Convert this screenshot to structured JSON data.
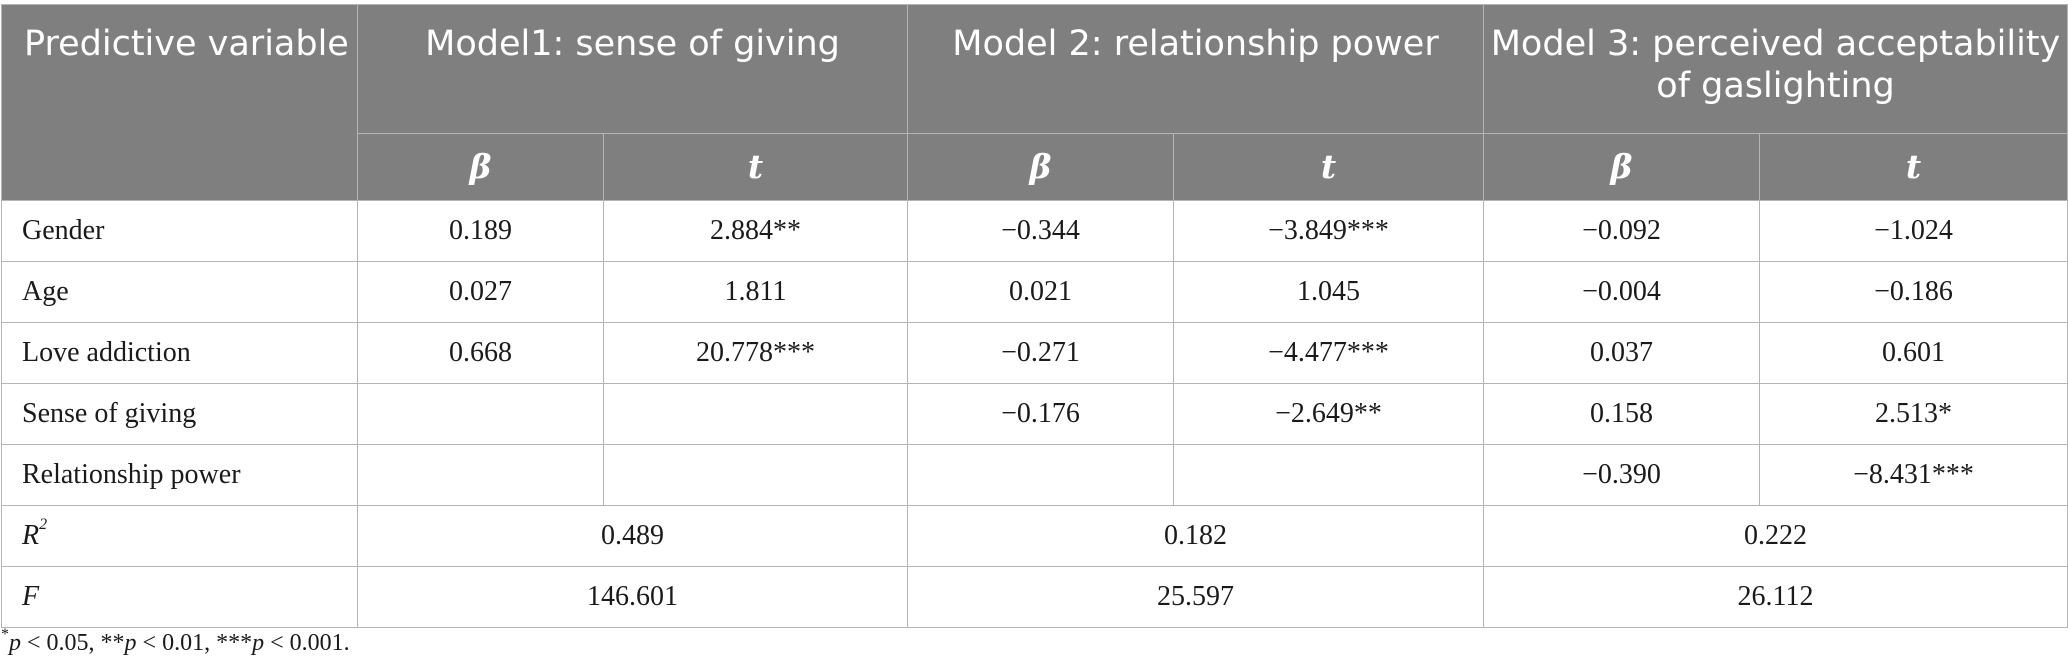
{
  "header": {
    "predictor": "Predictive variable",
    "models": [
      "Model1: sense of giving",
      "Model 2: relationship power",
      "Model 3: perceived acceptability of gaslighting"
    ],
    "beta": "β",
    "t": "t"
  },
  "rows": [
    {
      "label": "Gender",
      "cells": [
        "0.189",
        "2.884**",
        "−0.344",
        "−3.849***",
        "−0.092",
        "−1.024"
      ]
    },
    {
      "label": "Age",
      "cells": [
        "0.027",
        "1.811",
        "0.021",
        "1.045",
        "−0.004",
        "−0.186"
      ]
    },
    {
      "label": "Love addiction",
      "cells": [
        "0.668",
        "20.778***",
        "−0.271",
        "−4.477***",
        "0.037",
        "0.601"
      ]
    },
    {
      "label": "Sense of giving",
      "cells": [
        "",
        "",
        "−0.176",
        "−2.649**",
        "0.158",
        "2.513*"
      ]
    },
    {
      "label": "Relationship power",
      "cells": [
        "",
        "",
        "",
        "",
        "−0.390",
        "−8.431***"
      ]
    }
  ],
  "summary": {
    "r2": {
      "label": "R",
      "sup": "2",
      "values": [
        "0.489",
        "0.182",
        "0.222"
      ]
    },
    "f": {
      "label": "F",
      "values": [
        "146.601",
        "25.597",
        "26.112"
      ]
    }
  },
  "note": {
    "s1": "*",
    "p1": "p",
    "t1": " < 0.05, **",
    "p2": "p",
    "t2": " < 0.01, ***",
    "p3": "p",
    "t3": " < 0.001."
  }
}
